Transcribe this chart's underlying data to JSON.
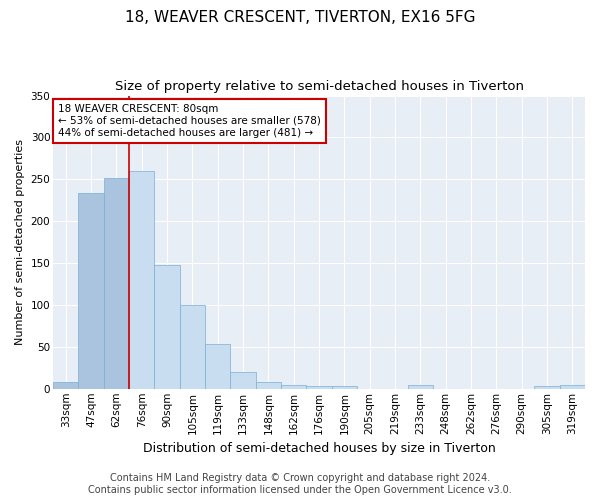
{
  "title": "18, WEAVER CRESCENT, TIVERTON, EX16 5FG",
  "subtitle": "Size of property relative to semi-detached houses in Tiverton",
  "xlabel": "Distribution of semi-detached houses by size in Tiverton",
  "ylabel": "Number of semi-detached properties",
  "categories": [
    "33sqm",
    "47sqm",
    "62sqm",
    "76sqm",
    "90sqm",
    "105sqm",
    "119sqm",
    "133sqm",
    "148sqm",
    "162sqm",
    "176sqm",
    "190sqm",
    "205sqm",
    "219sqm",
    "233sqm",
    "248sqm",
    "262sqm",
    "276sqm",
    "290sqm",
    "305sqm",
    "319sqm"
  ],
  "values": [
    8,
    234,
    251,
    260,
    148,
    100,
    53,
    20,
    8,
    5,
    3,
    3,
    0,
    0,
    5,
    0,
    0,
    0,
    0,
    3,
    4
  ],
  "bar_color_left": "#aac4e0",
  "bar_color_right": "#c8ddf0",
  "bar_edge_color": "#7aafd4",
  "highlight_index": 3,
  "highlight_line_color": "#cc0000",
  "annotation_text_line1": "18 WEAVER CRESCENT: 80sqm",
  "annotation_text_line2": "← 53% of semi-detached houses are smaller (578)",
  "annotation_text_line3": "44% of semi-detached houses are larger (481) →",
  "annotation_box_color": "#ffffff",
  "annotation_box_edge": "#cc0000",
  "ylim": [
    0,
    350
  ],
  "footer_line1": "Contains HM Land Registry data © Crown copyright and database right 2024.",
  "footer_line2": "Contains public sector information licensed under the Open Government Licence v3.0.",
  "fig_bg_color": "#ffffff",
  "plot_bg_color": "#e8eef6",
  "title_fontsize": 11,
  "subtitle_fontsize": 9.5,
  "xlabel_fontsize": 9,
  "ylabel_fontsize": 8,
  "tick_fontsize": 7.5,
  "footer_fontsize": 7
}
